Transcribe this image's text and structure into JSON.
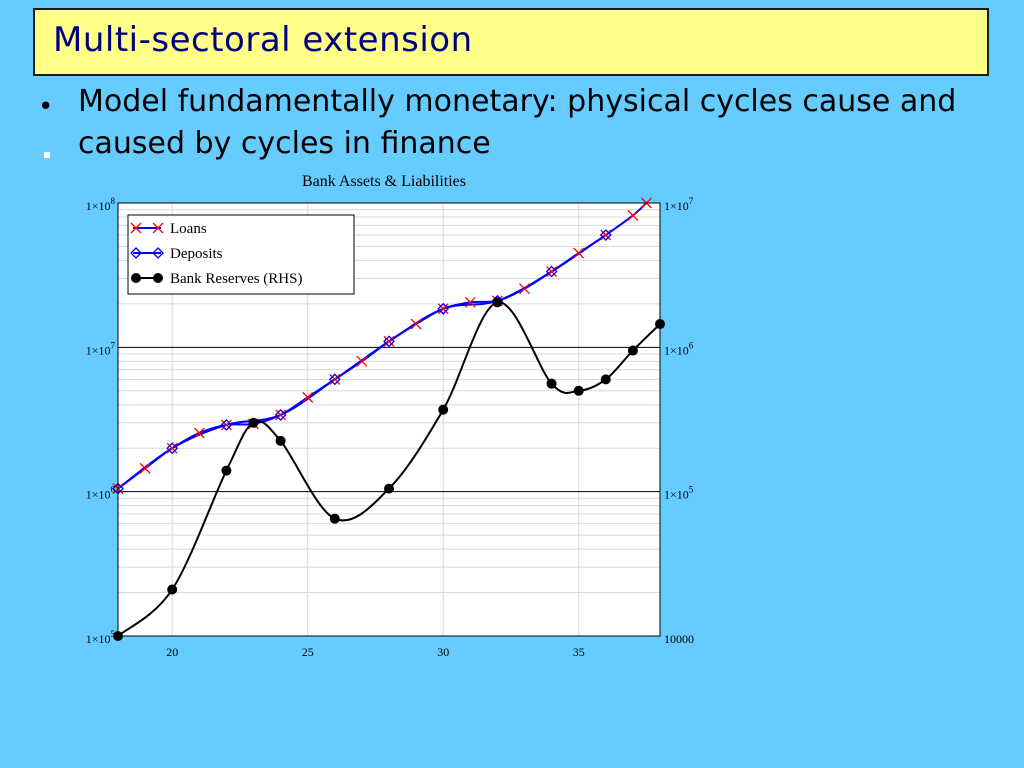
{
  "slide": {
    "title": "Multi-sectoral extension",
    "bullet_symbol": "•",
    "bullet_line1": "Model fundamentally monetary: physical cycles cause and",
    "bullet_line2": "caused by cycles in finance"
  },
  "chart_data": {
    "type": "line",
    "title": "Bank Assets & Liabilities",
    "xlabel": "",
    "ylabel": "",
    "x_range": [
      18,
      38
    ],
    "x_ticks": [
      20,
      25,
      30,
      35
    ],
    "x_tick_labels": [
      "20",
      "25",
      "30",
      "35"
    ],
    "y_scale": "log",
    "y_range": [
      100000,
      100000000
    ],
    "y_ticks": [
      100000,
      1000000,
      10000000,
      100000000
    ],
    "y_tick_labels": [
      {
        "base": "1×10",
        "exp": "5"
      },
      {
        "base": "1×10",
        "exp": "6"
      },
      {
        "base": "1×10",
        "exp": "7"
      },
      {
        "base": "1×10",
        "exp": "8"
      }
    ],
    "y2_scale": "log",
    "y2_range": [
      10000,
      10000000
    ],
    "y2_ticks": [
      10000,
      100000,
      1000000,
      10000000
    ],
    "y2_tick_labels": [
      {
        "base": "10000",
        "exp": ""
      },
      {
        "base": "1×10",
        "exp": "5"
      },
      {
        "base": "1×10",
        "exp": "6"
      },
      {
        "base": "1×10",
        "exp": "7"
      }
    ],
    "grid": true,
    "legend_position": "top-left",
    "series": [
      {
        "name": "Loans",
        "axis": "left",
        "color": "#0000ff",
        "marker": "x",
        "marker_color": "#ff0000",
        "x": [
          18,
          19,
          20,
          21,
          22,
          23,
          24,
          25,
          26,
          27,
          28,
          29,
          30,
          31,
          32,
          33,
          34,
          35,
          36,
          37,
          37.5
        ],
        "y": [
          1050000,
          1450000,
          2000000,
          2550000,
          2900000,
          2950000,
          3400000,
          4500000,
          6000000,
          8000000,
          11000000,
          14500000,
          18500000,
          20500000,
          21000000,
          25500000,
          33500000,
          45000000,
          60000000,
          82000000,
          100000000
        ]
      },
      {
        "name": "Deposits",
        "axis": "left",
        "color": "#0000ff",
        "marker": "diamond",
        "marker_color": "#0000ff",
        "x": [
          18,
          20,
          22,
          24,
          26,
          28,
          30,
          32,
          34,
          36
        ],
        "y": [
          1050000,
          2000000,
          2900000,
          3400000,
          6000000,
          11000000,
          18500000,
          21000000,
          33500000,
          60000000
        ]
      },
      {
        "name": "Bank Reserves (RHS)",
        "axis": "right",
        "color": "#000000",
        "marker": "dot",
        "marker_color": "#000000",
        "x": [
          18,
          20,
          22,
          23,
          24,
          26,
          28,
          30,
          32,
          34,
          35,
          36,
          37,
          38
        ],
        "y": [
          10000,
          21000,
          140000,
          300000,
          225000,
          65000,
          105000,
          370000,
          2050000,
          560000,
          500000,
          600000,
          950000,
          1450000
        ]
      }
    ]
  }
}
